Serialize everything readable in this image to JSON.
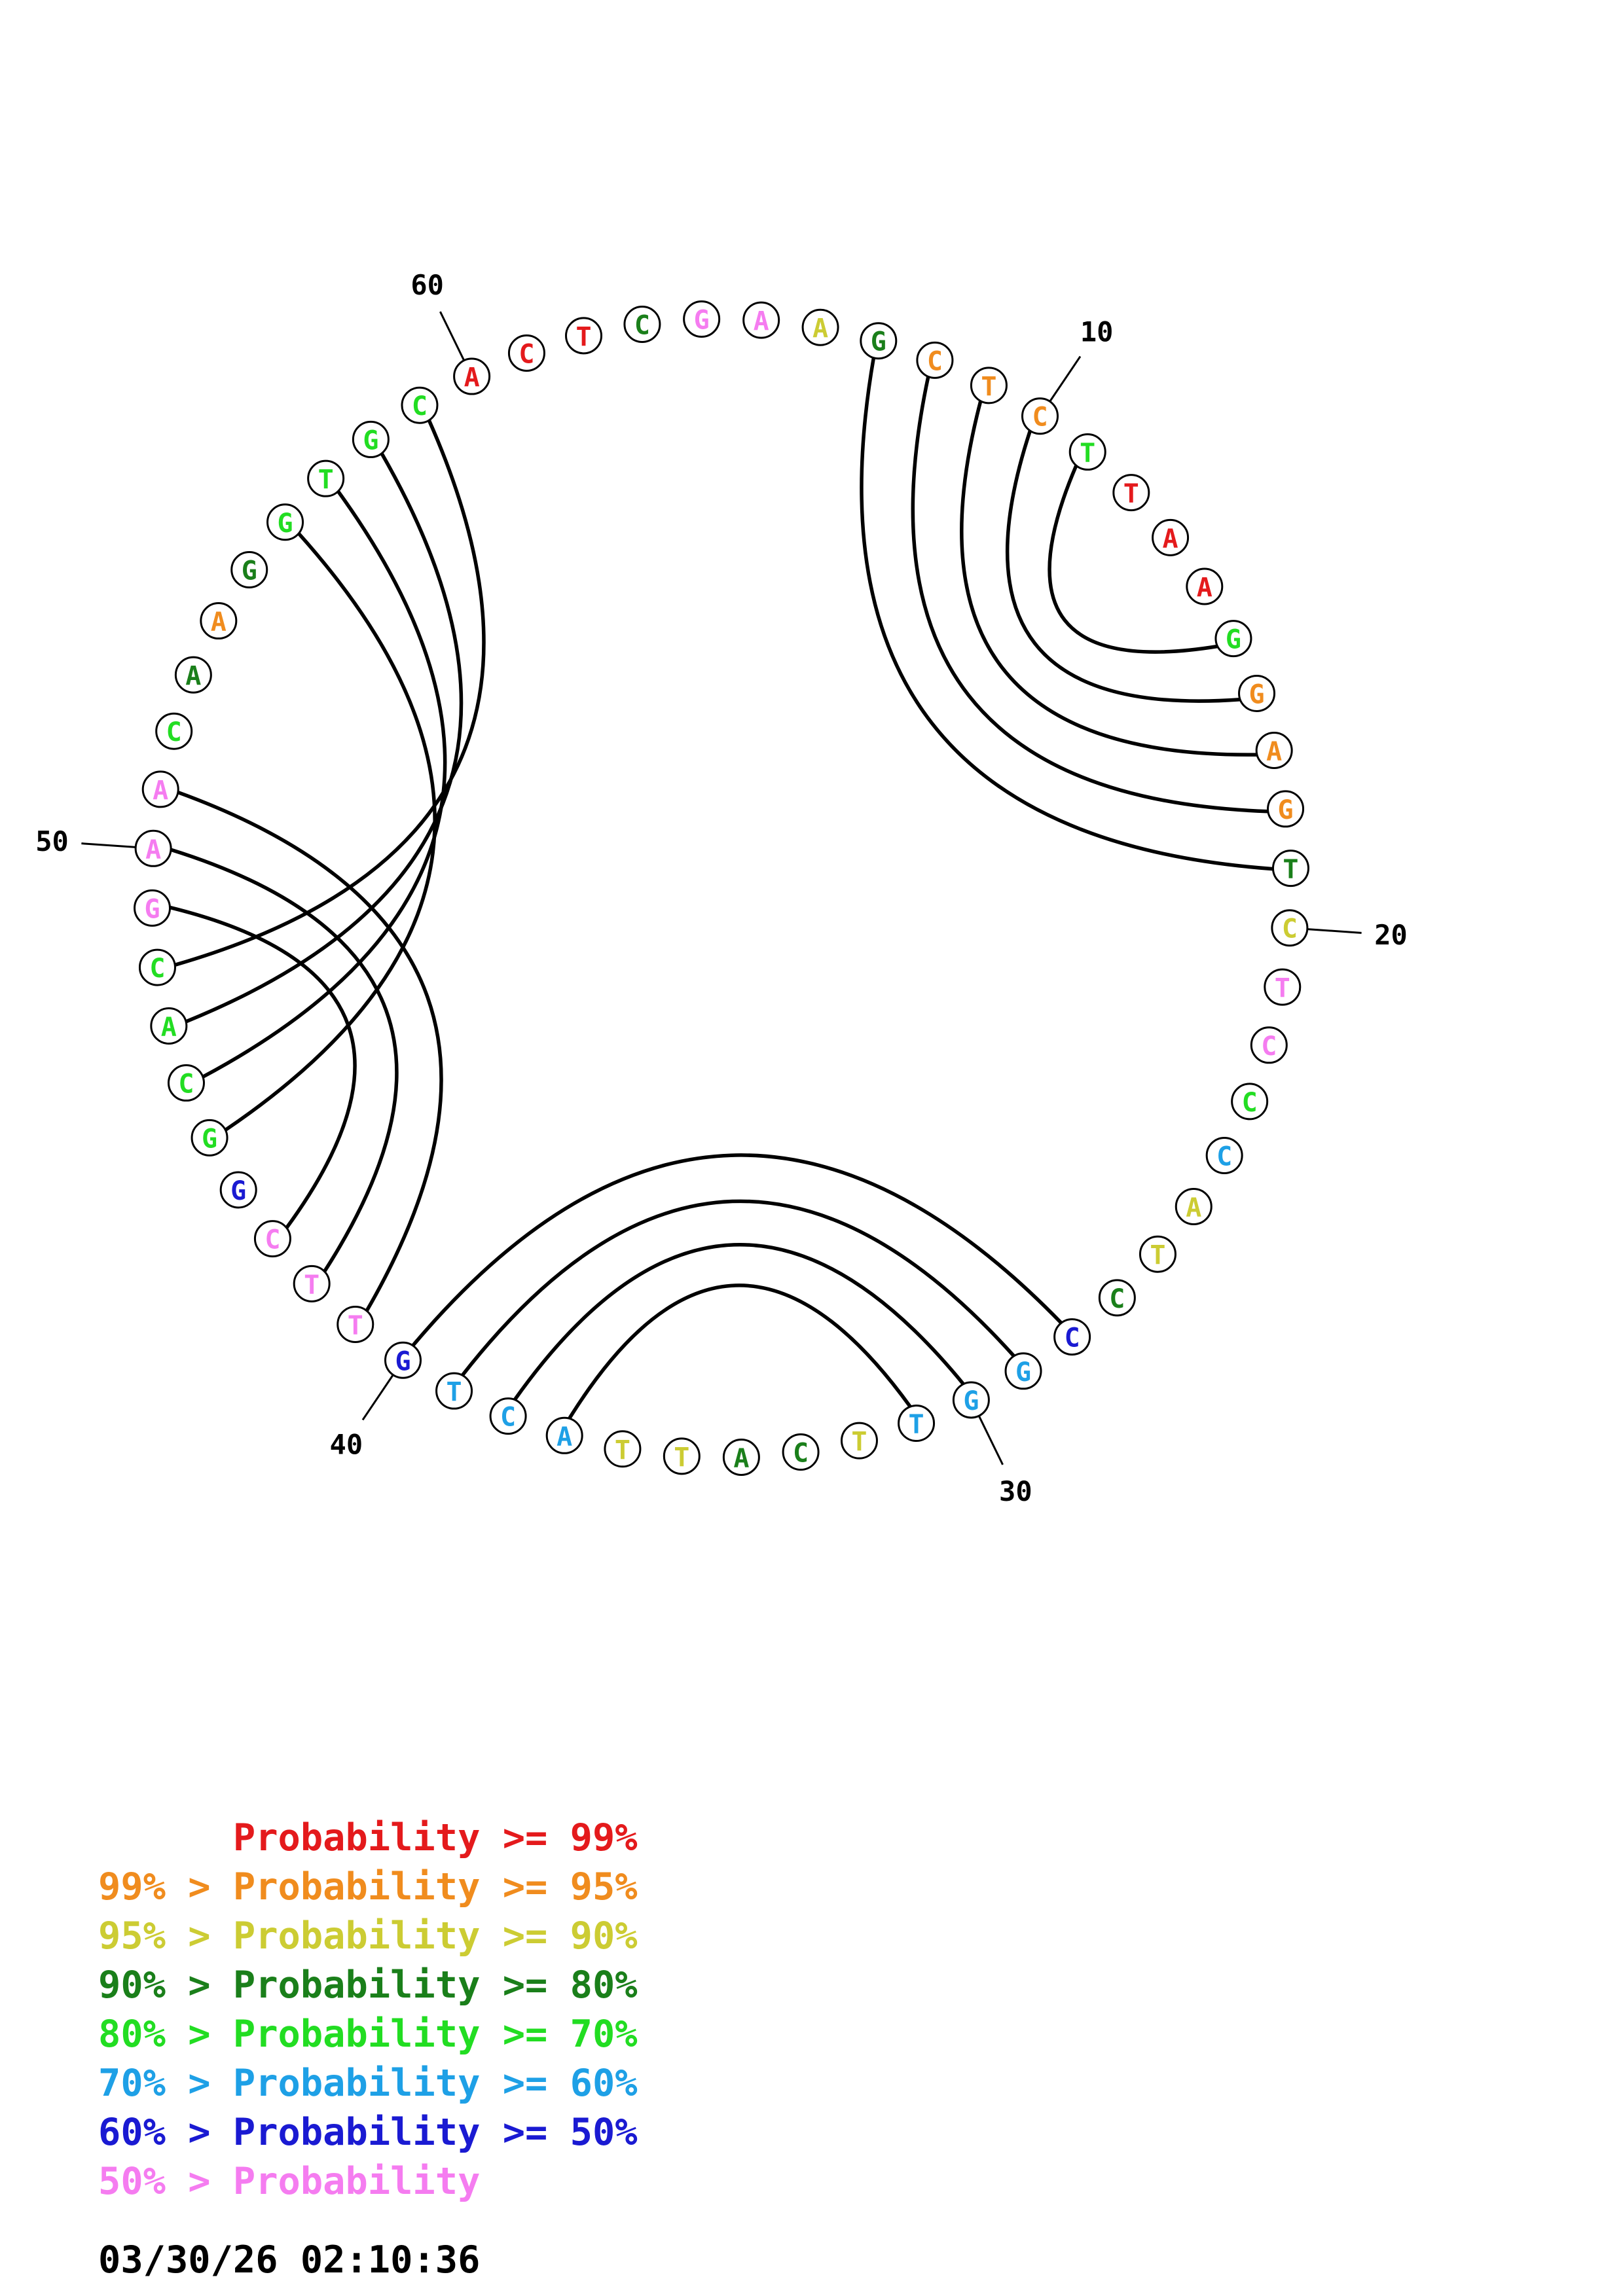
{
  "sequence": [
    {
      "n": 1,
      "base": "C",
      "color": "#e41a1c"
    },
    {
      "n": 2,
      "base": "T",
      "color": "#e41a1c"
    },
    {
      "n": 3,
      "base": "C",
      "color": "#1a7f1a"
    },
    {
      "n": 4,
      "base": "G",
      "color": "#f57cf0"
    },
    {
      "n": 5,
      "base": "A",
      "color": "#f57cf0"
    },
    {
      "n": 6,
      "base": "A",
      "color": "#cccc33"
    },
    {
      "n": 7,
      "base": "G",
      "color": "#1a7f1a"
    },
    {
      "n": 8,
      "base": "C",
      "color": "#f08c1e"
    },
    {
      "n": 9,
      "base": "T",
      "color": "#f08c1e"
    },
    {
      "n": 10,
      "base": "C",
      "color": "#f08c1e"
    },
    {
      "n": 11,
      "base": "T",
      "color": "#22dd22"
    },
    {
      "n": 12,
      "base": "T",
      "color": "#e41a1c"
    },
    {
      "n": 13,
      "base": "A",
      "color": "#e41a1c"
    },
    {
      "n": 14,
      "base": "A",
      "color": "#e41a1c"
    },
    {
      "n": 15,
      "base": "G",
      "color": "#22dd22"
    },
    {
      "n": 16,
      "base": "G",
      "color": "#f08c1e"
    },
    {
      "n": 17,
      "base": "A",
      "color": "#f08c1e"
    },
    {
      "n": 18,
      "base": "G",
      "color": "#f08c1e"
    },
    {
      "n": 19,
      "base": "T",
      "color": "#1a7f1a"
    },
    {
      "n": 20,
      "base": "C",
      "color": "#cccc33"
    },
    {
      "n": 21,
      "base": "T",
      "color": "#f57cf0"
    },
    {
      "n": 22,
      "base": "C",
      "color": "#f57cf0"
    },
    {
      "n": 23,
      "base": "C",
      "color": "#22dd22"
    },
    {
      "n": 24,
      "base": "C",
      "color": "#1ea0e6"
    },
    {
      "n": 25,
      "base": "A",
      "color": "#cccc33"
    },
    {
      "n": 26,
      "base": "T",
      "color": "#cccc33"
    },
    {
      "n": 27,
      "base": "C",
      "color": "#1a7f1a"
    },
    {
      "n": 28,
      "base": "C",
      "color": "#1a1ad2"
    },
    {
      "n": 29,
      "base": "G",
      "color": "#1ea0e6"
    },
    {
      "n": 30,
      "base": "G",
      "color": "#1ea0e6"
    },
    {
      "n": 31,
      "base": "T",
      "color": "#1ea0e6"
    },
    {
      "n": 32,
      "base": "T",
      "color": "#cccc33"
    },
    {
      "n": 33,
      "base": "C",
      "color": "#1a7f1a"
    },
    {
      "n": 34,
      "base": "A",
      "color": "#1a7f1a"
    },
    {
      "n": 35,
      "base": "T",
      "color": "#cccc33"
    },
    {
      "n": 36,
      "base": "T",
      "color": "#cccc33"
    },
    {
      "n": 37,
      "base": "A",
      "color": "#1ea0e6"
    },
    {
      "n": 38,
      "base": "C",
      "color": "#1ea0e6"
    },
    {
      "n": 39,
      "base": "T",
      "color": "#1ea0e6"
    },
    {
      "n": 40,
      "base": "G",
      "color": "#1a1ad2"
    },
    {
      "n": 41,
      "base": "T",
      "color": "#f57cf0"
    },
    {
      "n": 42,
      "base": "T",
      "color": "#f57cf0"
    },
    {
      "n": 43,
      "base": "C",
      "color": "#f57cf0"
    },
    {
      "n": 44,
      "base": "G",
      "color": "#1a1ad2"
    },
    {
      "n": 45,
      "base": "G",
      "color": "#22dd22"
    },
    {
      "n": 46,
      "base": "C",
      "color": "#22dd22"
    },
    {
      "n": 47,
      "base": "A",
      "color": "#22dd22"
    },
    {
      "n": 48,
      "base": "C",
      "color": "#22dd22"
    },
    {
      "n": 49,
      "base": "G",
      "color": "#f57cf0"
    },
    {
      "n": 50,
      "base": "A",
      "color": "#f57cf0"
    },
    {
      "n": 51,
      "base": "A",
      "color": "#f57cf0"
    },
    {
      "n": 52,
      "base": "C",
      "color": "#22dd22"
    },
    {
      "n": 53,
      "base": "A",
      "color": "#1a7f1a"
    },
    {
      "n": 54,
      "base": "A",
      "color": "#f08c1e"
    },
    {
      "n": 55,
      "base": "G",
      "color": "#1a7f1a"
    },
    {
      "n": 56,
      "base": "G",
      "color": "#22dd22"
    },
    {
      "n": 57,
      "base": "T",
      "color": "#22dd22"
    },
    {
      "n": 58,
      "base": "G",
      "color": "#22dd22"
    },
    {
      "n": 59,
      "base": "C",
      "color": "#22dd22"
    },
    {
      "n": 60,
      "base": "A",
      "color": "#e41a1c"
    }
  ],
  "pairs": [
    [
      7,
      19
    ],
    [
      8,
      18
    ],
    [
      9,
      17
    ],
    [
      10,
      16
    ],
    [
      11,
      15
    ],
    [
      28,
      40
    ],
    [
      29,
      39
    ],
    [
      30,
      38
    ],
    [
      31,
      37
    ],
    [
      41,
      51
    ],
    [
      42,
      50
    ],
    [
      43,
      49
    ],
    [
      45,
      56
    ],
    [
      46,
      57
    ],
    [
      47,
      58
    ],
    [
      48,
      59
    ]
  ],
  "tick_labels": [
    {
      "n": 10,
      "label": "10"
    },
    {
      "n": 20,
      "label": "20"
    },
    {
      "n": 30,
      "label": "30"
    },
    {
      "n": 40,
      "label": "40"
    },
    {
      "n": 50,
      "label": "50"
    },
    {
      "n": 60,
      "label": "60"
    }
  ],
  "legend": [
    {
      "left": "",
      "sep": "",
      "mid": "Probability",
      "right": ">= 99%",
      "color": "#e41a1c"
    },
    {
      "left": "99%",
      "sep": ">",
      "mid": "Probability",
      "right": ">= 95%",
      "color": "#f08c1e"
    },
    {
      "left": "95%",
      "sep": ">",
      "mid": "Probability",
      "right": ">= 90%",
      "color": "#cccc33"
    },
    {
      "left": "90%",
      "sep": ">",
      "mid": "Probability",
      "right": ">= 80%",
      "color": "#1a7f1a"
    },
    {
      "left": "80%",
      "sep": ">",
      "mid": "Probability",
      "right": ">= 70%",
      "color": "#22dd22"
    },
    {
      "left": "70%",
      "sep": ">",
      "mid": "Probability",
      "right": ">= 60%",
      "color": "#1ea0e6"
    },
    {
      "left": "60%",
      "sep": ">",
      "mid": "Probability",
      "right": ">= 50%",
      "color": "#1a1ad2"
    },
    {
      "left": "50%",
      "sep": ">",
      "mid": "Probability",
      "right": "",
      "color": "#f57cf0"
    }
  ],
  "timestamp": "03/30/26 02:10:36"
}
